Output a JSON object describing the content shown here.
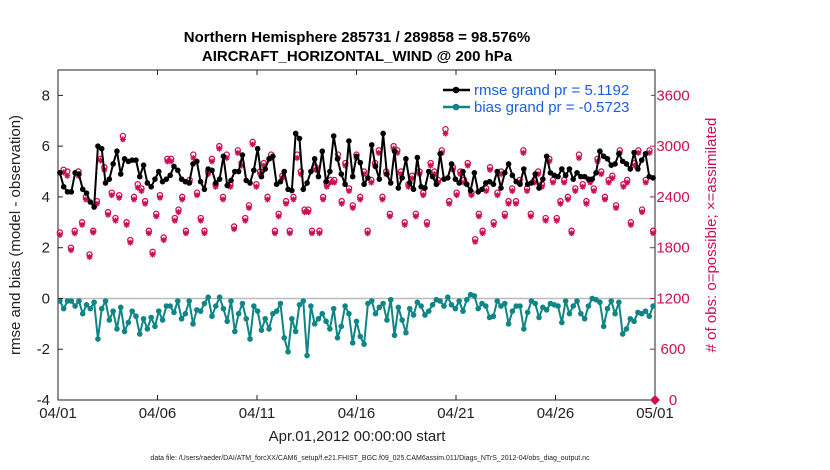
{
  "chart_data": {
    "type": "line",
    "title_line1": "Northern Hemisphere 285731 / 289858 = 98.576%",
    "title_line2": "AIRCRAFT_HORIZONTAL_WIND @ 200 hPa",
    "xlabel": "Apr.01,2012 00:00:00 start",
    "ylabel_left": "rmse and bias (model - observation)",
    "ylabel_right": "# of obs: o=possible; ×=assimilated",
    "xlim": [
      0,
      30
    ],
    "ylim_left": [
      -4,
      9
    ],
    "ylim_right": [
      0,
      3900
    ],
    "x_ticks": [
      {
        "value": 0,
        "label": "04/01"
      },
      {
        "value": 5,
        "label": "04/06"
      },
      {
        "value": 10,
        "label": "04/11"
      },
      {
        "value": 15,
        "label": "04/16"
      },
      {
        "value": 20,
        "label": "04/21"
      },
      {
        "value": 25,
        "label": "04/26"
      },
      {
        "value": 30,
        "label": "05/01"
      }
    ],
    "y_ticks_left": [
      "-4",
      "-2",
      "0",
      "2",
      "4",
      "6",
      "8"
    ],
    "y_ticks_right": [
      "0",
      "600",
      "1200",
      "1800",
      "2400",
      "3000",
      "3600"
    ],
    "footnote": "data file: /Users/raeder/DAI/ATM_forcXX/CAM6_setup/f.e21.FHIST_BGC.f09_025.CAM6assim.011/Diags_NTrS_2012-04/obs_diag_output.nc",
    "colors": {
      "rmse": "#000000",
      "bias": "#0f8585",
      "obs": "#cc0f55",
      "zero_line": "#bbbbbb",
      "legend_rmse_text": "#1a5fe0",
      "legend_bias_text": "#1a5fe0"
    },
    "series": [
      {
        "name": "rmse grand pr = 5.1192",
        "axis": "left",
        "values": [
          4.95,
          4.4,
          4.2,
          4.2,
          4.95,
          4.9,
          4.3,
          4.15,
          3.8,
          3.6,
          6.0,
          5.9,
          4.55,
          4.7,
          5.3,
          5.8,
          4.9,
          5.5,
          5.4,
          5.45,
          5.45,
          4.8,
          5.25,
          4.55,
          4.4,
          4.7,
          5.0,
          4.6,
          4.7,
          4.85,
          5.2,
          5.05,
          4.7,
          4.6,
          4.55,
          5.3,
          5.4,
          4.6,
          4.3,
          5.1,
          5.05,
          4.55,
          4.7,
          5.6,
          4.45,
          4.65,
          5.0,
          5.0,
          5.65,
          4.65,
          4.55,
          5.05,
          5.9,
          4.8,
          5.1,
          5.5,
          5.6,
          4.5,
          4.6,
          5.0,
          4.3,
          4.25,
          6.5,
          6.3,
          4.3,
          4.55,
          5.0,
          5.5,
          4.8,
          5.8,
          4.6,
          5.0,
          6.4,
          5.5,
          4.9,
          4.5,
          6.2,
          4.8,
          5.6,
          5.35,
          4.5,
          4.75,
          6.05,
          5.2,
          4.7,
          6.5,
          4.9,
          4.55,
          5.8,
          4.35,
          4.75,
          5.5,
          4.55,
          4.3,
          5.55,
          4.4,
          4.35,
          5.0,
          4.8,
          4.5,
          5.7,
          4.7,
          4.75,
          5.3,
          4.7,
          4.55,
          5.0,
          4.5,
          4.25,
          4.95,
          4.2,
          4.3,
          4.55,
          4.6,
          4.5,
          5.0,
          4.35,
          4.95,
          5.3,
          4.85,
          4.6,
          4.5,
          5.1,
          4.5,
          4.55,
          4.9,
          4.35,
          4.7,
          5.6,
          4.95,
          4.85,
          4.8,
          5.1,
          4.85,
          5.1,
          4.7,
          4.95,
          4.8,
          4.8,
          4.7,
          4.7,
          4.95,
          5.8,
          5.6,
          5.5,
          5.25,
          5.3,
          5.7,
          5.4,
          5.3,
          5.1,
          5.75,
          5.1,
          5.45,
          5.7,
          4.8,
          4.75
        ]
      },
      {
        "name": "bias grand pr = -0.5723",
        "axis": "left",
        "values": [
          -0.1,
          -0.4,
          -0.1,
          -0.1,
          -0.3,
          -0.1,
          -0.6,
          -0.25,
          -0.4,
          -0.15,
          -1.6,
          -0.4,
          -0.1,
          -0.85,
          -0.5,
          -1.2,
          -0.35,
          -1.3,
          -0.95,
          -0.5,
          -0.7,
          -1.4,
          -0.8,
          -1.2,
          -0.75,
          -1.1,
          -0.5,
          -0.85,
          -0.3,
          -0.3,
          -0.55,
          -0.1,
          -0.8,
          -0.6,
          -0.1,
          -1.0,
          -0.45,
          -0.5,
          -0.2,
          0.05,
          -0.7,
          -0.3,
          0.05,
          -0.4,
          -0.9,
          -0.1,
          -1.3,
          -0.6,
          -0.2,
          -0.8,
          -1.6,
          -0.3,
          -0.5,
          -1.25,
          -0.8,
          -1.2,
          -0.6,
          -0.5,
          -0.2,
          -1.55,
          -2.1,
          -0.8,
          -1.3,
          -0.25,
          -0.1,
          -2.25,
          -0.3,
          -1.0,
          -0.8,
          -0.6,
          -0.9,
          -1.2,
          -0.4,
          -1.55,
          -1.1,
          -0.3,
          -0.6,
          -1.75,
          -0.9,
          -1.5,
          -1.8,
          -0.2,
          -0.1,
          -0.6,
          -0.35,
          -0.2,
          -0.85,
          -0.05,
          -1.45,
          -0.35,
          -0.85,
          -1.35,
          -0.4,
          -0.65,
          -0.15,
          -0.3,
          -0.65,
          -0.5,
          -0.25,
          -0.05,
          -0.1,
          -0.3,
          0.05,
          -0.25,
          -0.4,
          -0.1,
          -0.5,
          -0.05,
          0.15,
          0.1,
          -0.4,
          -0.2,
          -0.3,
          -0.75,
          -0.7,
          -0.1,
          -0.3,
          -0.2,
          -1.0,
          -0.5,
          -0.3,
          -0.3,
          -1.2,
          -0.55,
          -0.1,
          -0.2,
          -0.75,
          -0.35,
          -0.45,
          -0.2,
          -0.25,
          -0.3,
          -0.95,
          -0.1,
          -0.6,
          -0.3,
          -0.1,
          -0.6,
          -0.8,
          -0.3,
          0.0,
          -0.05,
          -0.15,
          -1.1,
          -0.4,
          -0.1,
          -0.6,
          -0.15,
          -1.4,
          -1.2,
          -0.8,
          -0.9,
          -0.55,
          -0.6,
          -0.5,
          -0.7,
          -0.3
        ]
      },
      {
        "name": "obs possible",
        "axis": "right",
        "values": [
          1980,
          2720,
          2700,
          1800,
          2000,
          2700,
          2100,
          2400,
          1720,
          2000,
          2350,
          2850,
          2750,
          2220,
          2450,
          2150,
          2420,
          3120,
          2100,
          1890,
          2400,
          2550,
          2500,
          2350,
          2000,
          1750,
          2200,
          2420,
          1920,
          2850,
          2850,
          2150,
          2250,
          2400,
          2000,
          2600,
          2900,
          2450,
          2150,
          2000,
          2700,
          2850,
          2550,
          3000,
          2400,
          2900,
          2550,
          2050,
          2950,
          2800,
          2150,
          2300,
          3050,
          2550,
          2700,
          2800,
          2400,
          2900,
          2000,
          2200,
          2650,
          2350,
          2000,
          2400,
          2900,
          2700,
          2250,
          2250,
          2000,
          2750,
          2000,
          2400,
          2550,
          2600,
          2600,
          2900,
          2350,
          2800,
          2500,
          2300,
          2900,
          2400,
          2700,
          2000,
          2600,
          2800,
          2950,
          2400,
          2700,
          2200,
          3000,
          2950,
          2700,
          2100,
          2550,
          2650,
          2200,
          2700,
          2450,
          2100,
          2800,
          2700,
          2600,
          2950,
          3200,
          2350,
          2750,
          2450,
          2700,
          2600,
          2800,
          2450,
          1900,
          2200,
          2000,
          2500,
          2750,
          2100,
          2450,
          2700,
          2200,
          2350,
          2500,
          2350,
          2600,
          2950,
          2500,
          2200,
          2600,
          2700,
          2550,
          2150,
          2850,
          2600,
          2150,
          2350,
          2600,
          2400,
          2000,
          2500,
          2900,
          2550,
          2350,
          2600,
          2500,
          2850,
          2700,
          2400,
          2600,
          2650,
          2300,
          2950,
          2550,
          2600,
          2100,
          2800,
          2950,
          2250,
          2600,
          2950,
          2000
        ]
      },
      {
        "name": "obs assimilated",
        "axis": "right",
        "values": [
          1950,
          2690,
          2650,
          1770,
          1970,
          2650,
          2070,
          2370,
          1690,
          1980,
          2320,
          2830,
          2720,
          2190,
          2420,
          2120,
          2390,
          3080,
          2070,
          1860,
          2370,
          2510,
          2470,
          2320,
          1970,
          1720,
          2170,
          2390,
          1890,
          2820,
          2820,
          2120,
          2220,
          2370,
          1970,
          2570,
          2860,
          2420,
          2120,
          1970,
          2670,
          2820,
          2520,
          2970,
          2370,
          2860,
          2520,
          2020,
          2920,
          2770,
          2120,
          2270,
          3020,
          2520,
          2670,
          2770,
          2370,
          2860,
          1970,
          2170,
          2620,
          2320,
          1970,
          2370,
          2860,
          2670,
          2220,
          2220,
          1970,
          2720,
          1970,
          2370,
          2520,
          2570,
          2570,
          2860,
          2320,
          2770,
          2470,
          2270,
          2860,
          2370,
          2670,
          1970,
          2570,
          2770,
          2920,
          2370,
          2670,
          2170,
          2970,
          2920,
          2670,
          2070,
          2520,
          2620,
          2170,
          2670,
          2420,
          2070,
          2770,
          2670,
          2570,
          2920,
          3150,
          2320,
          2720,
          2420,
          2670,
          2570,
          2770,
          2420,
          1870,
          2170,
          1970,
          2470,
          2720,
          2070,
          2420,
          2670,
          2170,
          2320,
          2470,
          2320,
          2570,
          2920,
          2470,
          2170,
          2570,
          2670,
          2520,
          2120,
          2820,
          2570,
          2120,
          2320,
          2570,
          2370,
          1970,
          2470,
          2860,
          2520,
          2320,
          2570,
          2470,
          2820,
          2670,
          2370,
          2570,
          2620,
          2270,
          2920,
          2520,
          2570,
          2070,
          2770,
          2920,
          2220,
          2570,
          2920,
          1970
        ]
      }
    ],
    "legend": {
      "placement": "top-right",
      "entries": [
        "rmse grand pr = 5.1192",
        "bias grand pr = -0.5723"
      ]
    }
  }
}
